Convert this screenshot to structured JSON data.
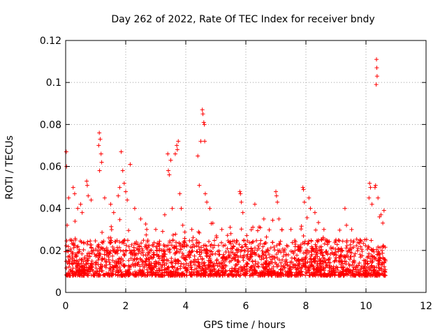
{
  "chart_data": {
    "type": "scatter",
    "title": "Day 262 of 2022, Rate Of TEC Index for receiver bndy",
    "xlabel": "GPS time / hours",
    "ylabel": "ROTI / TECUs",
    "xlim": [
      0,
      12
    ],
    "ylim": [
      0,
      0.12
    ],
    "xticks": [
      0,
      2,
      4,
      6,
      8,
      10,
      12
    ],
    "yticks": [
      0,
      0.02,
      0.04,
      0.06,
      0.08,
      0.1,
      0.12
    ],
    "xtick_labels": [
      "0",
      "2",
      "4",
      "6",
      "8",
      "10",
      "12"
    ],
    "ytick_labels": [
      "0",
      "0.02",
      "0.04",
      "0.06",
      "0.08",
      "0.1",
      "0.12"
    ],
    "grid": true,
    "marker": "+",
    "color": "#ff0000",
    "series": [
      {
        "name": "ROTI",
        "base_band": [
          0.005,
          0.025
        ],
        "time_range": [
          0,
          10.65
        ],
        "points": [
          [
            0.02,
            0.067
          ],
          [
            0.03,
            0.06
          ],
          [
            0.05,
            0.032
          ],
          [
            0.1,
            0.045
          ],
          [
            0.15,
            0.025
          ],
          [
            0.25,
            0.05
          ],
          [
            0.3,
            0.047
          ],
          [
            0.4,
            0.04
          ],
          [
            0.5,
            0.042
          ],
          [
            0.55,
            0.038
          ],
          [
            0.7,
            0.053
          ],
          [
            0.72,
            0.051
          ],
          [
            0.75,
            0.046
          ],
          [
            0.85,
            0.044
          ],
          [
            1.1,
            0.07
          ],
          [
            1.12,
            0.076
          ],
          [
            1.15,
            0.073
          ],
          [
            1.18,
            0.066
          ],
          [
            1.2,
            0.062
          ],
          [
            1.13,
            0.058
          ],
          [
            1.3,
            0.045
          ],
          [
            1.5,
            0.042
          ],
          [
            1.6,
            0.038
          ],
          [
            1.75,
            0.046
          ],
          [
            1.8,
            0.05
          ],
          [
            1.85,
            0.067
          ],
          [
            1.9,
            0.058
          ],
          [
            1.95,
            0.052
          ],
          [
            2.0,
            0.048
          ],
          [
            2.05,
            0.044
          ],
          [
            2.15,
            0.061
          ],
          [
            2.3,
            0.04
          ],
          [
            2.5,
            0.035
          ],
          [
            2.7,
            0.03
          ],
          [
            3.0,
            0.03
          ],
          [
            3.3,
            0.037
          ],
          [
            3.4,
            0.066
          ],
          [
            3.42,
            0.058
          ],
          [
            3.45,
            0.056
          ],
          [
            3.5,
            0.063
          ],
          [
            3.55,
            0.04
          ],
          [
            3.65,
            0.066
          ],
          [
            3.7,
            0.07
          ],
          [
            3.72,
            0.068
          ],
          [
            3.75,
            0.072
          ],
          [
            3.8,
            0.047
          ],
          [
            3.85,
            0.04
          ],
          [
            3.9,
            0.032
          ],
          [
            4.2,
            0.03
          ],
          [
            4.4,
            0.065
          ],
          [
            4.45,
            0.051
          ],
          [
            4.5,
            0.072
          ],
          [
            4.55,
            0.087
          ],
          [
            4.57,
            0.085
          ],
          [
            4.6,
            0.081
          ],
          [
            4.62,
            0.08
          ],
          [
            4.63,
            0.072
          ],
          [
            4.65,
            0.047
          ],
          [
            4.7,
            0.043
          ],
          [
            4.8,
            0.04
          ],
          [
            4.9,
            0.033
          ],
          [
            5.2,
            0.03
          ],
          [
            5.5,
            0.028
          ],
          [
            5.8,
            0.048
          ],
          [
            5.82,
            0.047
          ],
          [
            5.85,
            0.043
          ],
          [
            5.9,
            0.038
          ],
          [
            6.3,
            0.042
          ],
          [
            6.6,
            0.035
          ],
          [
            7.0,
            0.048
          ],
          [
            7.02,
            0.046
          ],
          [
            7.05,
            0.043
          ],
          [
            7.1,
            0.035
          ],
          [
            7.5,
            0.03
          ],
          [
            7.9,
            0.05
          ],
          [
            7.92,
            0.049
          ],
          [
            7.95,
            0.043
          ],
          [
            8.1,
            0.045
          ],
          [
            8.15,
            0.04
          ],
          [
            8.3,
            0.038
          ],
          [
            8.6,
            0.03
          ],
          [
            9.0,
            0.025
          ],
          [
            9.3,
            0.04
          ],
          [
            9.35,
            0.032
          ],
          [
            9.8,
            0.025
          ],
          [
            10.1,
            0.045
          ],
          [
            10.12,
            0.052
          ],
          [
            10.15,
            0.05
          ],
          [
            10.2,
            0.042
          ],
          [
            10.3,
            0.05
          ],
          [
            10.32,
            0.051
          ],
          [
            10.35,
            0.111
          ],
          [
            10.36,
            0.107
          ],
          [
            10.37,
            0.103
          ],
          [
            10.34,
            0.099
          ],
          [
            10.4,
            0.045
          ],
          [
            10.45,
            0.036
          ],
          [
            10.5,
            0.037
          ],
          [
            10.6,
            0.039
          ]
        ]
      }
    ]
  }
}
